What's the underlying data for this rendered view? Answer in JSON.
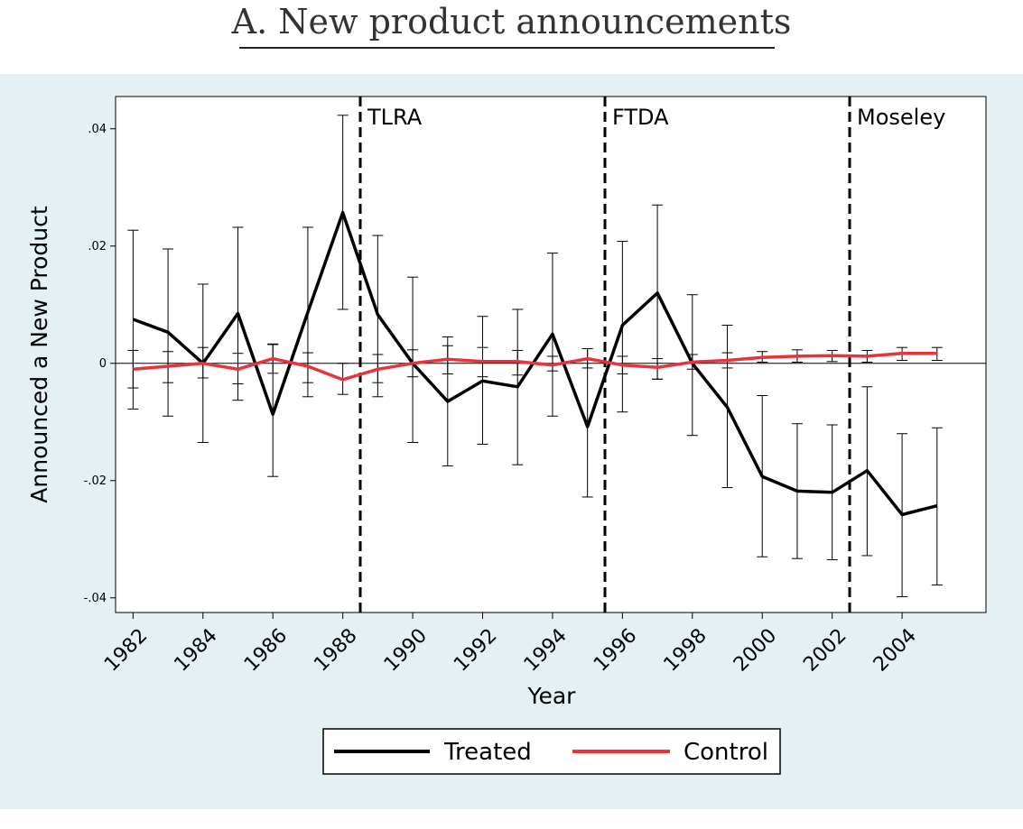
{
  "page_title": "A. New product announcements",
  "colors": {
    "treated": "#000000",
    "control": "#e8333a",
    "panel": "#e4f0f4"
  },
  "chart_data": {
    "type": "line",
    "xlabel": "Year",
    "ylabel": "Announced a New Product",
    "xlim": [
      1981.5,
      2006.4
    ],
    "ylim": [
      -0.0425,
      0.0455
    ],
    "yticks": [
      0.04,
      0.02,
      0,
      -0.02,
      -0.04
    ],
    "ytick_labels": [
      ".04",
      ".02",
      "0",
      "-.02",
      "-.04"
    ],
    "xticks": [
      1982,
      1984,
      1986,
      1988,
      1990,
      1992,
      1994,
      1996,
      1998,
      2000,
      2002,
      2004
    ],
    "xtick_labels": [
      "1982",
      "1984",
      "1986",
      "1988",
      "1990",
      "1992",
      "1994",
      "1996",
      "1998",
      "2000",
      "2002",
      "2004"
    ],
    "x": [
      1982,
      1983,
      1984,
      1985,
      1986,
      1987,
      1988,
      1989,
      1990,
      1991,
      1992,
      1993,
      1994,
      1995,
      1996,
      1997,
      1998,
      1999,
      2000,
      2001,
      2002,
      2003,
      2004,
      2005
    ],
    "series": [
      {
        "name": "Treated",
        "values": [
          0.0075,
          0.0053,
          0.0,
          0.0085,
          -0.0087,
          0.0087,
          0.0257,
          0.0083,
          0.0,
          -0.0065,
          -0.003,
          -0.004,
          0.005,
          -0.0108,
          0.0065,
          0.012,
          0.0,
          -0.0075,
          -0.0193,
          -0.0218,
          -0.022,
          -0.0183,
          -0.0258,
          -0.0243
        ],
        "ci_low": [
          -0.0078,
          -0.009,
          -0.0135,
          -0.0063,
          -0.0193,
          -0.0057,
          0.0092,
          -0.0057,
          -0.0135,
          -0.0175,
          -0.0138,
          -0.0173,
          -0.009,
          -0.0228,
          -0.0083,
          -0.0027,
          -0.0123,
          -0.0212,
          -0.033,
          -0.0333,
          -0.0335,
          -0.0328,
          -0.0398,
          -0.0378
        ],
        "ci_high": [
          0.0227,
          0.0195,
          0.0135,
          0.0232,
          0.0032,
          0.0232,
          0.0423,
          0.0218,
          0.0147,
          0.0045,
          0.008,
          0.0092,
          0.0188,
          0.0025,
          0.0208,
          0.027,
          0.0117,
          0.0065,
          -0.0055,
          -0.0103,
          -0.0105,
          -0.004,
          -0.012,
          -0.011
        ]
      },
      {
        "name": "Control",
        "values": [
          -0.001,
          -0.0005,
          0.0,
          -0.001,
          0.0008,
          -0.0005,
          -0.0028,
          -0.001,
          0.0,
          0.0007,
          0.0003,
          0.0003,
          -0.0003,
          0.0008,
          -0.0003,
          -0.0007,
          0.0002,
          0.0005,
          0.001,
          0.0012,
          0.0013,
          0.0012,
          0.0017,
          0.0017
        ],
        "ci_low": [
          -0.0042,
          -0.0033,
          -0.0025,
          -0.0035,
          -0.0017,
          -0.0033,
          -0.0053,
          -0.0033,
          -0.0023,
          -0.0018,
          -0.0023,
          -0.002,
          -0.0013,
          -0.0008,
          -0.0018,
          -0.0027,
          -0.001,
          -0.0008,
          0.0002,
          0.0002,
          0.0003,
          0.0002,
          0.0005,
          0.0005
        ],
        "ci_high": [
          0.0022,
          0.002,
          0.0027,
          0.0017,
          0.0033,
          0.0018,
          0.0,
          0.0015,
          0.0023,
          0.003,
          0.0027,
          0.0022,
          0.0012,
          0.0025,
          0.0012,
          0.0008,
          0.0015,
          0.0018,
          0.002,
          0.0023,
          0.0022,
          0.0022,
          0.0027,
          0.0027
        ]
      }
    ],
    "events": [
      {
        "label": "TLRA",
        "x": 1988.5
      },
      {
        "label": "FTDA",
        "x": 1995.5
      },
      {
        "label": "Moseley",
        "x": 2002.5
      }
    ],
    "reference_line_y": 0,
    "grid": false,
    "legend": {
      "position": "bottom",
      "entries": [
        "Treated",
        "Control"
      ]
    }
  }
}
